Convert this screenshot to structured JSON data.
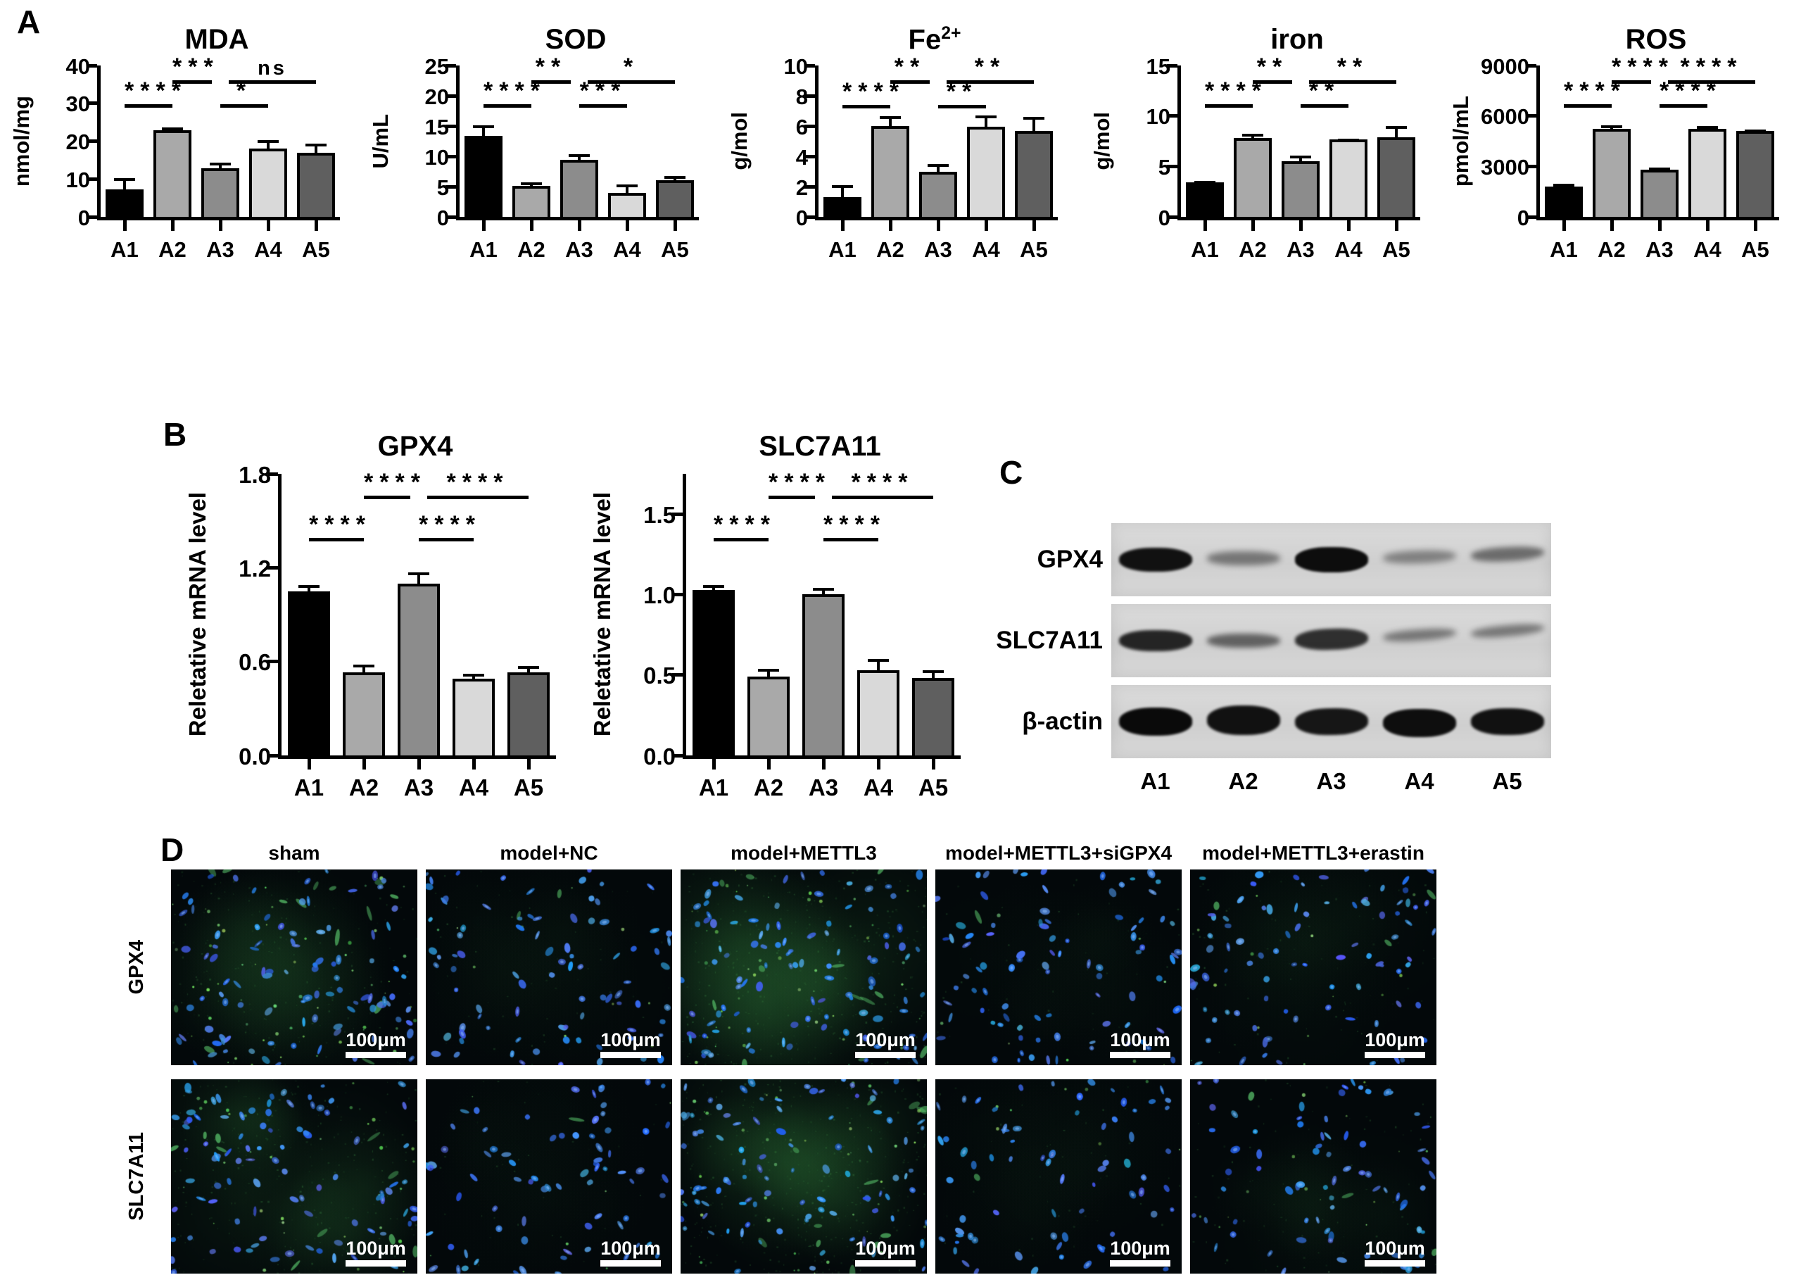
{
  "panel_labels": {
    "A": "A",
    "B": "B",
    "C": "C",
    "D": "D"
  },
  "style": {
    "bar_colors": [
      "#000000",
      "#a9a9a9",
      "#8c8c8c",
      "#d9d9d9",
      "#5f5f5f"
    ],
    "axis_color": "#000000",
    "blot_strip_bg": "#d6d6d6",
    "nuclei_color": "#3a6cf0",
    "stain_color": "#4fae5c"
  },
  "chart_data": [
    {
      "type": "bar",
      "title": "MDA",
      "ylabel": "nmol/mg",
      "categories": [
        "A1",
        "A2",
        "A3",
        "A4",
        "A5"
      ],
      "values": [
        7.3,
        22.8,
        12.8,
        18.0,
        17.0
      ],
      "errors": [
        3.0,
        0.9,
        1.5,
        2.2,
        2.3
      ],
      "ylim": [
        0,
        40
      ],
      "yticks": [
        0,
        10,
        20,
        30,
        40
      ],
      "grid": false,
      "legend": "none",
      "significance": [
        {
          "from": 0,
          "to": 1,
          "label": "****",
          "tier": 0
        },
        {
          "from": 2,
          "to": 3,
          "label": "*",
          "tier": 0
        },
        {
          "from": 1,
          "to": 2,
          "label": "***",
          "tier": 1
        },
        {
          "from": 2,
          "to": 4,
          "label": "ns",
          "tier": 1
        }
      ]
    },
    {
      "type": "bar",
      "title": "SOD",
      "ylabel": "U/mL",
      "categories": [
        "A1",
        "A2",
        "A3",
        "A4",
        "A5"
      ],
      "values": [
        13.4,
        5.1,
        9.4,
        3.9,
        6.0
      ],
      "errors": [
        1.7,
        0.6,
        0.9,
        1.5,
        0.7
      ],
      "ylim": [
        0,
        25
      ],
      "yticks": [
        0,
        5,
        10,
        15,
        20,
        25
      ],
      "grid": false,
      "legend": "none",
      "significance": [
        {
          "from": 0,
          "to": 1,
          "label": "****",
          "tier": 0
        },
        {
          "from": 2,
          "to": 3,
          "label": "***",
          "tier": 0
        },
        {
          "from": 1,
          "to": 2,
          "label": "**",
          "tier": 1
        },
        {
          "from": 2,
          "to": 4,
          "label": "*",
          "tier": 1
        }
      ]
    },
    {
      "type": "bar",
      "title": "Fe",
      "title_sup": "2+",
      "ylabel": "g/mol",
      "categories": [
        "A1",
        "A2",
        "A3",
        "A4",
        "A5"
      ],
      "values": [
        1.3,
        6.0,
        3.0,
        5.95,
        5.7
      ],
      "errors": [
        0.8,
        0.65,
        0.5,
        0.75,
        0.9
      ],
      "ylim": [
        0,
        10
      ],
      "yticks": [
        0,
        2,
        4,
        6,
        8,
        10
      ],
      "grid": false,
      "legend": "none",
      "significance": [
        {
          "from": 0,
          "to": 1,
          "label": "****",
          "tier": 0
        },
        {
          "from": 2,
          "to": 3,
          "label": "**",
          "tier": 0
        },
        {
          "from": 1,
          "to": 2,
          "label": "**",
          "tier": 1
        },
        {
          "from": 2,
          "to": 4,
          "label": "**",
          "tier": 1
        }
      ]
    },
    {
      "type": "bar",
      "title": "iron",
      "ylabel": "g/mol",
      "categories": [
        "A1",
        "A2",
        "A3",
        "A4",
        "A5"
      ],
      "values": [
        3.4,
        7.8,
        5.5,
        7.7,
        7.9
      ],
      "errors": [
        0.15,
        0.4,
        0.6,
        0.08,
        1.1
      ],
      "ylim": [
        0,
        15
      ],
      "yticks": [
        0,
        5,
        10,
        15
      ],
      "grid": false,
      "legend": "none",
      "significance": [
        {
          "from": 0,
          "to": 1,
          "label": "****",
          "tier": 0
        },
        {
          "from": 2,
          "to": 3,
          "label": "**",
          "tier": 0
        },
        {
          "from": 1,
          "to": 2,
          "label": "**",
          "tier": 1
        },
        {
          "from": 2,
          "to": 4,
          "label": "**",
          "tier": 1
        }
      ]
    },
    {
      "type": "bar",
      "title": "ROS",
      "ylabel": "pmol/mL",
      "categories": [
        "A1",
        "A2",
        "A3",
        "A4",
        "A5"
      ],
      "values": [
        1800,
        5250,
        2800,
        5250,
        5100
      ],
      "errors": [
        150,
        200,
        150,
        150,
        100
      ],
      "ylim": [
        0,
        9000
      ],
      "yticks": [
        0,
        3000,
        6000,
        9000
      ],
      "grid": false,
      "legend": "none",
      "significance": [
        {
          "from": 0,
          "to": 1,
          "label": "****",
          "tier": 0
        },
        {
          "from": 2,
          "to": 3,
          "label": "****",
          "tier": 0
        },
        {
          "from": 1,
          "to": 2,
          "label": "****",
          "tier": 1
        },
        {
          "from": 2,
          "to": 4,
          "label": "****",
          "tier": 1
        }
      ]
    },
    {
      "type": "bar",
      "title": "GPX4",
      "ylabel": "Reletative mRNA level",
      "categories": [
        "A1",
        "A2",
        "A3",
        "A4",
        "A5"
      ],
      "values": [
        1.05,
        0.53,
        1.1,
        0.49,
        0.53
      ],
      "errors": [
        0.04,
        0.05,
        0.07,
        0.03,
        0.04
      ],
      "ylim": [
        0,
        1.8
      ],
      "yticks": [
        0.0,
        0.6,
        1.2,
        1.8
      ],
      "grid": false,
      "legend": "none",
      "significance": [
        {
          "from": 0,
          "to": 1,
          "label": "****",
          "tier": 0
        },
        {
          "from": 2,
          "to": 3,
          "label": "****",
          "tier": 0
        },
        {
          "from": 1,
          "to": 2,
          "label": "****",
          "tier": 1
        },
        {
          "from": 2,
          "to": 4,
          "label": "****",
          "tier": 1
        }
      ]
    },
    {
      "type": "bar",
      "title": "SLC7A11",
      "ylabel": "Reletative mRNA level",
      "categories": [
        "A1",
        "A2",
        "A3",
        "A4",
        "A5"
      ],
      "values": [
        1.03,
        0.49,
        1.0,
        0.53,
        0.48
      ],
      "errors": [
        0.03,
        0.05,
        0.04,
        0.07,
        0.05
      ],
      "ylim": [
        0,
        1.75
      ],
      "yticks": [
        0.0,
        0.5,
        1.0,
        1.5
      ],
      "grid": false,
      "legend": "none",
      "significance": [
        {
          "from": 0,
          "to": 1,
          "label": "****",
          "tier": 0
        },
        {
          "from": 2,
          "to": 3,
          "label": "****",
          "tier": 0
        },
        {
          "from": 1,
          "to": 2,
          "label": "****",
          "tier": 1
        },
        {
          "from": 2,
          "to": 4,
          "label": "****",
          "tier": 1
        }
      ]
    }
  ],
  "western_blot": {
    "lane_labels": [
      "A1",
      "A2",
      "A3",
      "A4",
      "A5"
    ],
    "rows": [
      {
        "label": "GPX4",
        "bands": [
          {
            "intensity": 0.95,
            "thickness": 34,
            "dy": 0,
            "tilt": 0
          },
          {
            "intensity": 0.45,
            "thickness": 20,
            "dy": -2,
            "tilt": 0
          },
          {
            "intensity": 0.97,
            "thickness": 36,
            "dy": 0,
            "tilt": 0
          },
          {
            "intensity": 0.4,
            "thickness": 18,
            "dy": -4,
            "tilt": -2
          },
          {
            "intensity": 0.5,
            "thickness": 20,
            "dy": -8,
            "tilt": -3
          }
        ]
      },
      {
        "label": "SLC7A11",
        "bands": [
          {
            "intensity": 0.85,
            "thickness": 30,
            "dy": 0,
            "tilt": 0
          },
          {
            "intensity": 0.55,
            "thickness": 20,
            "dy": 0,
            "tilt": 0
          },
          {
            "intensity": 0.8,
            "thickness": 30,
            "dy": -2,
            "tilt": -2
          },
          {
            "intensity": 0.45,
            "thickness": 16,
            "dy": -8,
            "tilt": -4
          },
          {
            "intensity": 0.45,
            "thickness": 16,
            "dy": -14,
            "tilt": -5
          }
        ]
      },
      {
        "label": "β-actin",
        "bands": [
          {
            "intensity": 0.98,
            "thickness": 40,
            "dy": 0,
            "tilt": 0
          },
          {
            "intensity": 0.95,
            "thickness": 42,
            "dy": -2,
            "tilt": 0
          },
          {
            "intensity": 0.92,
            "thickness": 38,
            "dy": 0,
            "tilt": -1
          },
          {
            "intensity": 0.96,
            "thickness": 40,
            "dy": 2,
            "tilt": 0
          },
          {
            "intensity": 0.95,
            "thickness": 38,
            "dy": 0,
            "tilt": 0
          }
        ]
      }
    ]
  },
  "microscopy": {
    "column_headers": [
      "sham",
      "model+NC",
      "model+METTL3",
      "model+METTL3+siGPX4",
      "model+METTL3+erastin"
    ],
    "row_labels": [
      "GPX4",
      "SLC7A11"
    ],
    "scale_bar_label": "100μm",
    "cells": [
      [
        {
          "seed": 11,
          "nuclei": 95,
          "green_spots": 55,
          "green_haze": 0.3,
          "green_cells": 14
        },
        {
          "seed": 22,
          "nuclei": 85,
          "green_spots": 10,
          "green_haze": 0.1,
          "green_cells": 2
        },
        {
          "seed": 33,
          "nuclei": 100,
          "green_spots": 45,
          "green_haze": 0.6,
          "green_cells": 12
        },
        {
          "seed": 44,
          "nuclei": 90,
          "green_spots": 8,
          "green_haze": 0.08,
          "green_cells": 1
        },
        {
          "seed": 55,
          "nuclei": 85,
          "green_spots": 14,
          "green_haze": 0.14,
          "green_cells": 3
        }
      ],
      [
        {
          "seed": 66,
          "nuclei": 90,
          "green_spots": 35,
          "green_haze": 0.45,
          "green_cells": 10
        },
        {
          "seed": 77,
          "nuclei": 75,
          "green_spots": 6,
          "green_haze": 0.07,
          "green_cells": 1
        },
        {
          "seed": 88,
          "nuclei": 95,
          "green_spots": 40,
          "green_haze": 0.65,
          "green_cells": 12
        },
        {
          "seed": 99,
          "nuclei": 70,
          "green_spots": 8,
          "green_haze": 0.08,
          "green_cells": 1
        },
        {
          "seed": 111,
          "nuclei": 72,
          "green_spots": 16,
          "green_haze": 0.15,
          "green_cells": 3
        }
      ]
    ]
  }
}
